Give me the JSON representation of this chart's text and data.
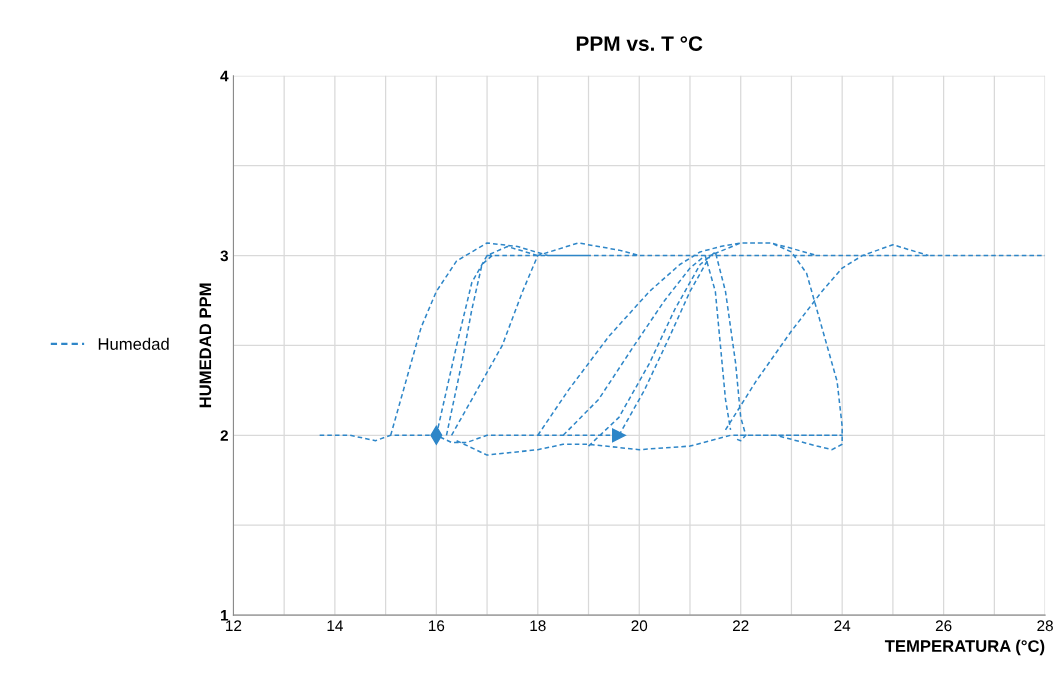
{
  "chart_data": {
    "type": "line",
    "title": "PPM vs. T °C",
    "xlabel": "TEMPERATURA (°C)",
    "ylabel": "HUMEDAD PPM",
    "series": [
      {
        "name": "Humedad",
        "color": "#2e86c8",
        "x": [
          16.0,
          16.4,
          16.7,
          17.0,
          17.4,
          18.0,
          null,
          15.1,
          15.4,
          15.7,
          16.0,
          16.4,
          17.0,
          17.6,
          18.2,
          19.0,
          null,
          16.2,
          16.5,
          16.7,
          16.9,
          17.1,
          null,
          16.3,
          16.8,
          17.3,
          17.7,
          18.0,
          18.8,
          19.6,
          20.0,
          null,
          16.4,
          17.0,
          18.0,
          18.5,
          19.0,
          20.0,
          21.0,
          21.8,
          22.7,
          23.4,
          23.8,
          24.0,
          23.9,
          23.4,
          23.0,
          22.4,
          21.9,
          null,
          17.0,
          28.0,
          null,
          18.0,
          18.6,
          19.4,
          20.2,
          20.8,
          21.2,
          21.6,
          22.0,
          22.6,
          23.0,
          23.5,
          null,
          18.5,
          19.2,
          19.9,
          20.5,
          21.0,
          21.3,
          21.5,
          21.6,
          21.7,
          21.8,
          null,
          19.0,
          19.6,
          20.2,
          20.7,
          21.2,
          21.5,
          21.7,
          21.9,
          22.0,
          22.1,
          22.0,
          21.9,
          null,
          19.6,
          20.1,
          20.6,
          21.0,
          21.4,
          22.0,
          22.6,
          23.0,
          23.3,
          23.6,
          23.9,
          24.0,
          24.0,
          23.8,
          23.5,
          22.7,
          null,
          21.7,
          22.3,
          23.0,
          23.6,
          24.0,
          24.4,
          25.0,
          25.7,
          null,
          13.7,
          14.3,
          14.8,
          15.1,
          15.5,
          16.0,
          16.3,
          16.6,
          17.0,
          17.6,
          18.2,
          18.7,
          19.3,
          19.6
        ],
        "values": [
          2.0,
          2.5,
          2.85,
          3.0,
          3.05,
          3.0,
          null,
          2.0,
          2.3,
          2.6,
          2.8,
          2.97,
          3.07,
          3.05,
          3.0,
          3.0,
          null,
          2.0,
          2.4,
          2.7,
          2.95,
          3.0,
          null,
          2.0,
          2.25,
          2.5,
          2.8,
          3.0,
          3.07,
          3.03,
          3.0,
          null,
          1.97,
          1.89,
          1.92,
          1.95,
          1.95,
          1.92,
          1.94,
          2.0,
          2.0,
          2.0,
          2.0,
          2.0,
          2.0,
          2.0,
          2.0,
          2.0,
          2.0,
          null,
          3.0,
          3.0,
          null,
          2.0,
          2.25,
          2.55,
          2.8,
          2.95,
          3.02,
          3.05,
          3.07,
          3.07,
          3.04,
          3.0,
          null,
          2.0,
          2.2,
          2.5,
          2.75,
          2.93,
          3.0,
          2.8,
          2.5,
          2.2,
          2.03,
          null,
          1.94,
          2.1,
          2.4,
          2.7,
          2.95,
          3.02,
          2.8,
          2.4,
          2.1,
          2.0,
          1.97,
          1.98,
          null,
          2.0,
          2.25,
          2.55,
          2.8,
          3.0,
          3.07,
          3.07,
          3.02,
          2.9,
          2.6,
          2.3,
          2.05,
          1.95,
          1.92,
          1.94,
          2.0,
          null,
          2.03,
          2.3,
          2.58,
          2.8,
          2.93,
          3.0,
          3.06,
          3.0,
          null,
          2.0,
          2.0,
          1.97,
          2.0,
          2.0,
          2.0,
          1.96,
          1.96,
          2.0,
          2.0,
          2.0,
          2.0,
          2.0,
          2.0
        ]
      }
    ],
    "xlim": [
      12,
      28
    ],
    "xticks": [
      12,
      {
        "value": 13,
        "label": null
      },
      14,
      {
        "value": 15,
        "label": null
      },
      16,
      {
        "value": 17,
        "label": null
      },
      18,
      {
        "value": 19,
        "label": null
      },
      20,
      {
        "value": 21,
        "label": null
      },
      22,
      {
        "value": 23,
        "label": null
      },
      24,
      {
        "value": 25,
        "label": null
      },
      26,
      {
        "value": 27,
        "label": null
      },
      28
    ],
    "ylim": [
      1,
      4
    ],
    "yticks": [
      1,
      {
        "value": 1.5,
        "label": null
      },
      2,
      {
        "value": 2.5,
        "label": null
      },
      3,
      {
        "value": 3.5,
        "label": null
      },
      4
    ],
    "grid": true,
    "legend": "left",
    "line_style": "dashed"
  }
}
